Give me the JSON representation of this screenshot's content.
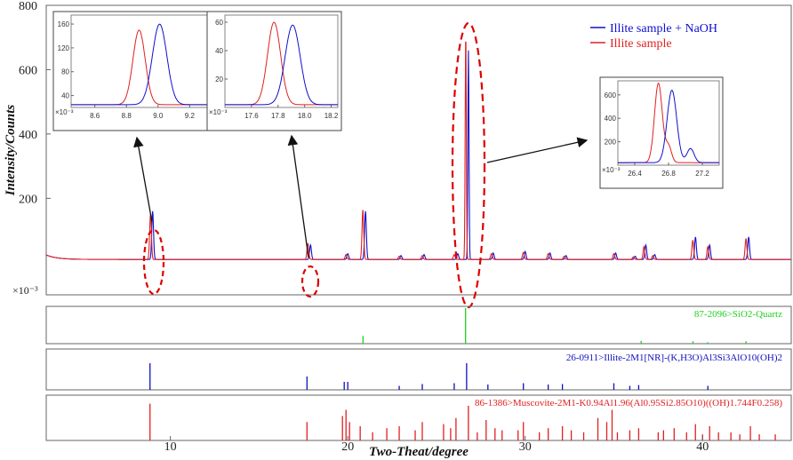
{
  "chart_data": {
    "type": "line",
    "xlabel": "Two-Theat/degree",
    "ylabel": "Intensity/Counts",
    "y_multiplier_label": "×10^-3",
    "xlim": [
      3,
      45
    ],
    "ylim": [
      -100,
      800
    ],
    "x_ticks": [
      10,
      20,
      30,
      40
    ],
    "y_ticks": [
      200,
      400,
      600,
      800
    ],
    "baseline": 10,
    "legend": {
      "position": "top-right",
      "entries": [
        "Illite sample + NaOH",
        "Illite sample"
      ]
    },
    "colors": {
      "naoh": "#1010d0",
      "illite": "#e02020",
      "quartz": "#20d020",
      "illite_ref": "#1010c0",
      "muscovite_ref": "#e02020",
      "annotation": "#dd0000"
    },
    "series": [
      {
        "name": "Illite sample + NaOH",
        "color": "#1010d0",
        "peaks": [
          [
            9.0,
            160
          ],
          [
            17.9,
            55
          ],
          [
            21.0,
            160
          ],
          [
            26.8,
            660
          ],
          [
            39.6,
            80
          ],
          [
            40.4,
            55
          ],
          [
            42.6,
            80
          ],
          [
            20.0,
            28
          ],
          [
            23.0,
            22
          ],
          [
            24.3,
            25
          ],
          [
            26.2,
            28
          ],
          [
            28.2,
            30
          ],
          [
            30.0,
            35
          ],
          [
            31.4,
            30
          ],
          [
            32.3,
            22
          ],
          [
            35.1,
            30
          ],
          [
            36.2,
            20
          ],
          [
            36.8,
            55
          ],
          [
            37.3,
            25
          ]
        ]
      },
      {
        "name": "Illite sample",
        "color": "#e02020",
        "peaks": [
          [
            8.88,
            150
          ],
          [
            17.75,
            60
          ],
          [
            20.85,
            165
          ],
          [
            26.65,
            720
          ],
          [
            39.45,
            70
          ],
          [
            40.3,
            50
          ],
          [
            42.45,
            75
          ],
          [
            19.9,
            25
          ],
          [
            22.9,
            20
          ],
          [
            24.2,
            22
          ],
          [
            26.0,
            25
          ],
          [
            28.1,
            28
          ],
          [
            29.9,
            32
          ],
          [
            31.3,
            28
          ],
          [
            32.2,
            20
          ],
          [
            35.0,
            28
          ],
          [
            36.1,
            18
          ],
          [
            36.7,
            50
          ],
          [
            37.2,
            22
          ]
        ]
      }
    ],
    "insets": [
      {
        "xlim": [
          8.45,
          9.35
        ],
        "ylim": [
          20,
          175
        ],
        "x_ticks": [
          "8.6",
          "8.8",
          "9.0",
          "9.2"
        ],
        "y_ticks": [
          "40",
          "80",
          "120",
          "160"
        ],
        "multiplier": "×10^-3",
        "naoh_peak": [
          9.01,
          160,
          0.065
        ],
        "illite_peak": [
          8.88,
          150,
          0.055
        ]
      },
      {
        "xlim": [
          17.4,
          18.25
        ],
        "ylim": [
          0,
          65
        ],
        "x_ticks": [
          "17.6",
          "17.8",
          "18.0",
          "18.2"
        ],
        "y_ticks": [
          "20",
          "40",
          "60"
        ],
        "multiplier": "×10^-3",
        "naoh_peak": [
          17.91,
          58,
          0.08
        ],
        "illite_peak": [
          17.77,
          60,
          0.07
        ]
      },
      {
        "xlim": [
          26.2,
          27.4
        ],
        "ylim": [
          0,
          720
        ],
        "x_ticks": [
          "26.4",
          "26.8",
          "27.2"
        ],
        "y_ticks": [
          "200",
          "400",
          "600"
        ],
        "multiplier": "×10^-3",
        "naoh_peak": [
          26.84,
          640,
          0.08
        ],
        "illite_peak": [
          26.68,
          700,
          0.065
        ]
      }
    ],
    "reference_panels": [
      {
        "label": "87-2096>SiO2-Quartz",
        "color": "#20d020",
        "lines": [
          [
            20.86,
            0.22
          ],
          [
            26.64,
            1.0
          ],
          [
            36.54,
            0.08
          ],
          [
            39.46,
            0.07
          ],
          [
            40.29,
            0.04
          ],
          [
            42.45,
            0.07
          ]
        ]
      },
      {
        "label": "26-0911>Illite-2M1[NR]-(K,H3O)Al3Si3AlO10(OH)2",
        "color": "#1010c0",
        "lines": [
          [
            8.85,
            1.0
          ],
          [
            17.7,
            0.5
          ],
          [
            19.8,
            0.3
          ],
          [
            20.0,
            0.3
          ],
          [
            22.9,
            0.15
          ],
          [
            24.2,
            0.22
          ],
          [
            26.0,
            0.25
          ],
          [
            26.7,
            1.0
          ],
          [
            27.9,
            0.2
          ],
          [
            29.9,
            0.25
          ],
          [
            31.3,
            0.2
          ],
          [
            32.1,
            0.22
          ],
          [
            35.0,
            0.25
          ],
          [
            35.9,
            0.15
          ],
          [
            36.4,
            0.18
          ],
          [
            40.3,
            0.15
          ]
        ]
      },
      {
        "label": "86-1386>Muscovite-2M1-K0.94Al1.96(Al0.95Si2.85O10)((OH)1.744F0.258)",
        "color": "#e02020",
        "lines": [
          [
            8.85,
            0.9
          ],
          [
            17.7,
            0.45
          ],
          [
            19.7,
            0.6
          ],
          [
            19.9,
            0.75
          ],
          [
            20.1,
            0.45
          ],
          [
            20.7,
            0.35
          ],
          [
            21.4,
            0.2
          ],
          [
            22.2,
            0.3
          ],
          [
            22.9,
            0.35
          ],
          [
            23.8,
            0.25
          ],
          [
            24.2,
            0.45
          ],
          [
            25.4,
            0.4
          ],
          [
            25.8,
            0.3
          ],
          [
            26.1,
            0.55
          ],
          [
            26.8,
            0.85
          ],
          [
            27.3,
            0.2
          ],
          [
            27.8,
            0.5
          ],
          [
            28.3,
            0.3
          ],
          [
            28.7,
            0.25
          ],
          [
            29.6,
            0.25
          ],
          [
            29.9,
            0.45
          ],
          [
            30.8,
            0.2
          ],
          [
            31.3,
            0.3
          ],
          [
            32.1,
            0.35
          ],
          [
            32.6,
            0.25
          ],
          [
            33.3,
            0.2
          ],
          [
            34.1,
            0.55
          ],
          [
            34.6,
            0.45
          ],
          [
            34.9,
            0.75
          ],
          [
            35.2,
            0.2
          ],
          [
            35.9,
            0.25
          ],
          [
            36.4,
            0.3
          ],
          [
            37.5,
            0.2
          ],
          [
            37.8,
            0.25
          ],
          [
            38.4,
            0.3
          ],
          [
            39.1,
            0.2
          ],
          [
            39.6,
            0.4
          ],
          [
            40.0,
            0.15
          ],
          [
            40.4,
            0.35
          ],
          [
            40.9,
            0.2
          ],
          [
            41.6,
            0.2
          ],
          [
            42.1,
            0.15
          ],
          [
            42.7,
            0.35
          ],
          [
            43.2,
            0.15
          ],
          [
            44.1,
            0.15
          ]
        ]
      }
    ]
  }
}
